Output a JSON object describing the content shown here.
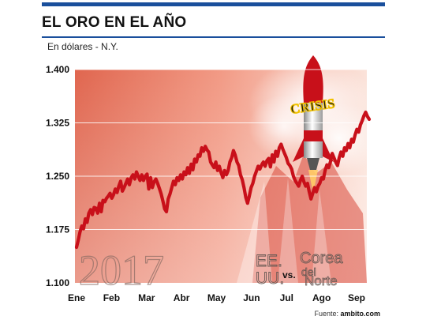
{
  "header": {
    "title": "EL ORO EN EL AÑO",
    "subtitle": "En dólares - N.Y."
  },
  "colors": {
    "accent": "#1a4f9c",
    "line": "#c8101a",
    "fill_light": "#f8dcd2",
    "fill_dark": "#d9543f"
  },
  "annotations": {
    "year": "2017",
    "left_country": [
      "EE.",
      "UU."
    ],
    "vs": "vs.",
    "right_country": [
      "Corea",
      "del",
      "Norte"
    ],
    "crisis_label": "CRISIS"
  },
  "source": {
    "prefix": "Fuente: ",
    "name": "ambito.com"
  },
  "chart_data": {
    "type": "line",
    "title": "EL ORO EN EL AÑO",
    "ylabel": "En dólares - N.Y.",
    "ylim": [
      1100,
      1400
    ],
    "yticks": [
      "1.100",
      "1.175",
      "1.250",
      "1.325",
      "1.400"
    ],
    "ytick_values": [
      1100,
      1175,
      1250,
      1325,
      1400
    ],
    "xticks": [
      "Ene",
      "Feb",
      "Mar",
      "Abr",
      "May",
      "Jun",
      "Jul",
      "Ago",
      "Sep"
    ],
    "grid": true,
    "series": [
      {
        "values": [
          1150,
          1160,
          1172,
          1180,
          1176,
          1190,
          1185,
          1198,
          1203,
          1196,
          1206,
          1205,
          1198,
          1212,
          1200,
          1216,
          1214,
          1219,
          1222,
          1226,
          1219,
          1224,
          1232,
          1227,
          1236,
          1243,
          1229,
          1234,
          1240,
          1246,
          1238,
          1248,
          1252,
          1246,
          1256,
          1250,
          1244,
          1252,
          1244,
          1250,
          1253,
          1232,
          1248,
          1234,
          1242,
          1246,
          1240,
          1233,
          1225,
          1215,
          1204,
          1200,
          1218,
          1225,
          1234,
          1243,
          1238,
          1248,
          1244,
          1252,
          1246,
          1256,
          1252,
          1262,
          1254,
          1267,
          1259,
          1274,
          1270,
          1280,
          1278,
          1290,
          1285,
          1292,
          1287,
          1284,
          1270,
          1266,
          1262,
          1270,
          1258,
          1264,
          1255,
          1248,
          1258,
          1252,
          1258,
          1270,
          1276,
          1286,
          1280,
          1270,
          1265,
          1252,
          1245,
          1234,
          1220,
          1212,
          1222,
          1234,
          1240,
          1250,
          1257,
          1264,
          1260,
          1266,
          1270,
          1264,
          1272,
          1275,
          1263,
          1280,
          1270,
          1285,
          1278,
          1290,
          1295,
          1288,
          1282,
          1276,
          1268,
          1265,
          1260,
          1250,
          1244,
          1240,
          1236,
          1244,
          1250,
          1242,
          1236,
          1240,
          1228,
          1218,
          1226,
          1234,
          1228,
          1236,
          1240,
          1248,
          1246,
          1258,
          1266,
          1262,
          1270,
          1282,
          1276,
          1270,
          1265,
          1276,
          1284,
          1278,
          1290,
          1286,
          1296,
          1290,
          1302,
          1298,
          1308,
          1316,
          1312,
          1322,
          1328,
          1335,
          1340,
          1334,
          1330
        ]
      }
    ]
  }
}
